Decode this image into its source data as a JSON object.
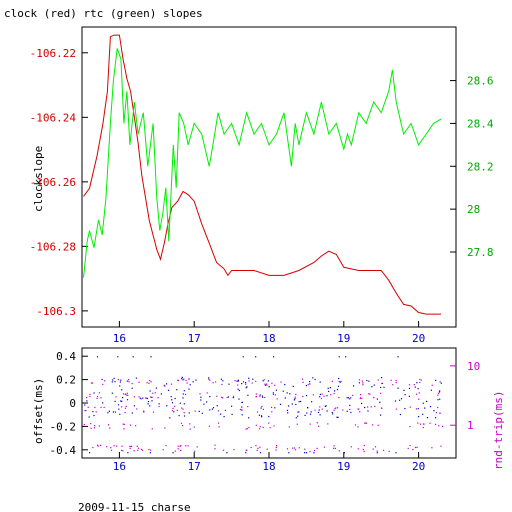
{
  "title": "clock (red) rtc (green) slopes",
  "footer": "2009-11-15 charse",
  "colors": {
    "clock": "#d40000",
    "rtc": "#00ee00",
    "offset": "#0000cc",
    "rtt": "#cc00cc",
    "axis": "#000000"
  },
  "chart_data": [
    {
      "type": "line",
      "title": "clock (red) rtc (green) slopes",
      "ylabel": "clockslope",
      "xlim": [
        15.5,
        20.5
      ],
      "ylim_left": [
        -106.305,
        -106.212
      ],
      "ylim_right": [
        27.45,
        28.85
      ],
      "x_ticks": [
        "16",
        "17",
        "18",
        "19",
        "20"
      ],
      "y_ticks_left": [
        "-106.22",
        "-106.24",
        "-106.26",
        "-106.28",
        "-106.3"
      ],
      "y_ticks_right": [
        "28.6",
        "28.4",
        "28.2",
        "28",
        "27.8"
      ],
      "series": [
        {
          "name": "clock",
          "axis": "left",
          "color": "#d40000",
          "x": [
            15.52,
            15.6,
            15.7,
            15.78,
            15.84,
            15.88,
            15.93,
            16.0,
            16.05,
            16.1,
            16.15,
            16.2,
            16.25,
            16.3,
            16.4,
            16.5,
            16.55,
            16.6,
            16.65,
            16.7,
            16.78,
            16.85,
            16.92,
            17.0,
            17.1,
            17.2,
            17.3,
            17.4,
            17.45,
            17.5,
            17.6,
            17.8,
            18.0,
            18.2,
            18.4,
            18.6,
            18.7,
            18.8,
            18.9,
            19.0,
            19.2,
            19.4,
            19.5,
            19.6,
            19.7,
            19.8,
            19.9,
            20.0,
            20.1,
            20.3
          ],
          "y": [
            -106.2645,
            -106.262,
            -106.252,
            -106.242,
            -106.232,
            -106.215,
            -106.2145,
            -106.2145,
            -106.222,
            -106.228,
            -106.232,
            -106.24,
            -106.248,
            -106.258,
            -106.272,
            -106.281,
            -106.284,
            -106.279,
            -106.273,
            -106.268,
            -106.266,
            -106.263,
            -106.264,
            -106.266,
            -106.273,
            -106.279,
            -106.285,
            -106.287,
            -106.289,
            -106.2875,
            -106.2875,
            -106.2875,
            -106.289,
            -106.289,
            -106.2875,
            -106.285,
            -106.283,
            -106.2815,
            -106.2825,
            -106.2865,
            -106.2875,
            -106.2875,
            -106.2875,
            -106.2905,
            -106.2945,
            -106.298,
            -106.2985,
            -106.3005,
            -106.301,
            -106.301
          ]
        },
        {
          "name": "rtc",
          "axis": "right",
          "color": "#00ee00",
          "x": [
            15.52,
            15.57,
            15.6,
            15.66,
            15.72,
            15.77,
            15.82,
            15.88,
            15.92,
            15.97,
            16.02,
            16.06,
            16.1,
            16.14,
            16.2,
            16.25,
            16.32,
            16.38,
            16.45,
            16.5,
            16.54,
            16.58,
            16.62,
            16.66,
            16.72,
            16.76,
            16.8,
            16.86,
            16.92,
            17.0,
            17.1,
            17.2,
            17.25,
            17.32,
            17.4,
            17.5,
            17.6,
            17.7,
            17.8,
            17.9,
            18.0,
            18.1,
            18.2,
            18.3,
            18.35,
            18.4,
            18.5,
            18.6,
            18.7,
            18.8,
            18.9,
            19.0,
            19.05,
            19.1,
            19.2,
            19.3,
            19.4,
            19.5,
            19.6,
            19.65,
            19.7,
            19.8,
            19.9,
            20.0,
            20.1,
            20.2,
            20.3
          ],
          "y": [
            27.68,
            27.85,
            27.9,
            27.82,
            27.95,
            27.88,
            28.05,
            28.4,
            28.6,
            28.75,
            28.7,
            28.4,
            28.55,
            28.3,
            28.5,
            28.35,
            28.45,
            28.2,
            28.4,
            28.05,
            27.9,
            27.98,
            28.1,
            27.85,
            28.3,
            28.1,
            28.45,
            28.4,
            28.3,
            28.4,
            28.35,
            28.2,
            28.3,
            28.45,
            28.35,
            28.4,
            28.3,
            28.45,
            28.35,
            28.4,
            28.3,
            28.35,
            28.45,
            28.2,
            28.4,
            28.3,
            28.45,
            28.35,
            28.5,
            28.35,
            28.4,
            28.28,
            28.35,
            28.3,
            28.45,
            28.4,
            28.5,
            28.45,
            28.55,
            28.65,
            28.5,
            28.35,
            28.4,
            28.3,
            28.35,
            28.4,
            28.42
          ]
        }
      ]
    },
    {
      "type": "scatter",
      "ylabel": "offset(ms)",
      "y2label": "rnd-trip(ms)",
      "xlim": [
        15.5,
        20.5
      ],
      "ylim_left": [
        -0.47,
        0.47
      ],
      "y2_scale": "log",
      "ylim_right": [
        0.28,
        20
      ],
      "x_ticks": [
        "16",
        "17",
        "18",
        "19",
        "20"
      ],
      "y_ticks_left": [
        "0.4",
        "0.2",
        "0",
        "-0.2",
        "-0.4"
      ],
      "y_ticks_right": [
        "10",
        "1"
      ],
      "series": [
        {
          "name": "offset",
          "axis": "left",
          "color": "#0000cc",
          "note": "dense point cloud, values mostly between -0.1 and 0.2 with outliers near ±0.4"
        },
        {
          "name": "rnd-trip",
          "axis": "right",
          "color": "#cc00cc",
          "note": "bands near 0.4, 1, 2 and 5 ms"
        }
      ]
    }
  ]
}
